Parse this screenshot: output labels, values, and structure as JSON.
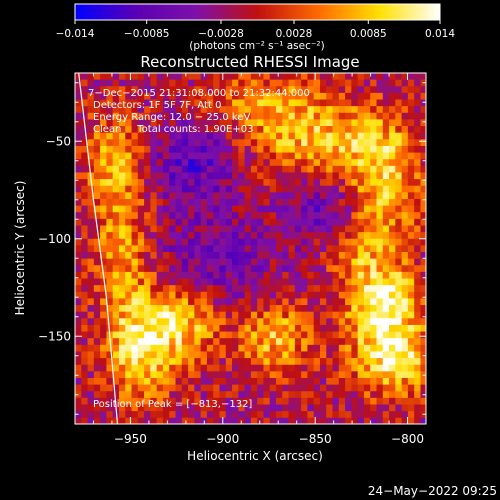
{
  "chart_data": {
    "type": "heatmap",
    "title": "Reconstructed RHESSI Image",
    "xlabel": "Heliocentric X (arcsec)",
    "ylabel": "Heliocentric Y (arcsec)",
    "xlim": [
      -980,
      -790
    ],
    "ylim": [
      -195,
      -15
    ],
    "x_ticks": [
      -950,
      -900,
      -850,
      -800
    ],
    "x_tick_labels": [
      "−950",
      "−900",
      "−850",
      "−800"
    ],
    "y_ticks": [
      -50,
      -100,
      -150
    ],
    "y_tick_labels": [
      "−50",
      "−100",
      "−150"
    ],
    "colorbar": {
      "min": -0.014,
      "max": 0.014,
      "ticks": [
        -0.014,
        -0.0085,
        -0.0028,
        0.0028,
        0.0085,
        0.014
      ],
      "tick_labels": [
        "−0.014",
        "−0.0085",
        "−0.0028",
        "0.0028",
        "0.0085",
        "0.014"
      ],
      "label": "(photons cm⁻² s⁻¹ asec⁻²)",
      "stops": [
        "#0000ff",
        "#5a00b4",
        "#7e10a8",
        "#c01010",
        "#ff6a00",
        "#ffe000",
        "#ffffff"
      ]
    },
    "annotations": [
      "7−Dec−2015 21:31:08.000 to 21:32:44.000",
      "Detectors: 1F 5F 7F, Att 0",
      "Energy Range: 12.0 − 25.0 keV",
      "Clean     Total counts: 1.90E+03",
      "Position of Peak = [−813,−132]"
    ],
    "sources": [
      {
        "x": -813,
        "y": -132,
        "sx": 14,
        "sy": 14,
        "amp": 0.014
      },
      {
        "x": -808,
        "y": -162,
        "sx": 16,
        "sy": 13,
        "amp": 0.012
      },
      {
        "x": -945,
        "y": -155,
        "sx": 13,
        "sy": 20,
        "amp": 0.012
      },
      {
        "x": -920,
        "y": -142,
        "sx": 15,
        "sy": 14,
        "amp": 0.0105
      },
      {
        "x": -872,
        "y": -150,
        "sx": 14,
        "sy": 13,
        "amp": 0.0095
      },
      {
        "x": -848,
        "y": -50,
        "sx": 28,
        "sy": 14,
        "amp": 0.0095
      },
      {
        "x": -812,
        "y": -72,
        "sx": 14,
        "sy": 22,
        "amp": 0.0095
      },
      {
        "x": -958,
        "y": -60,
        "sx": 12,
        "sy": 18,
        "amp": 0.0085
      },
      {
        "x": -955,
        "y": -105,
        "sx": 11,
        "sy": 20,
        "amp": 0.0075
      },
      {
        "x": -880,
        "y": -30,
        "sx": 22,
        "sy": 10,
        "amp": 0.007
      },
      {
        "x": -830,
        "y": -105,
        "sx": 12,
        "sy": 12,
        "amp": 0.006
      },
      {
        "x": -915,
        "y": -60,
        "sx": 18,
        "sy": 16,
        "amp": -0.007
      },
      {
        "x": -905,
        "y": -115,
        "sx": 22,
        "sy": 18,
        "amp": -0.006
      },
      {
        "x": -845,
        "y": -85,
        "sx": 14,
        "sy": 14,
        "amp": -0.006
      }
    ],
    "limb_points": [
      [
        -978,
        -15
      ],
      [
        -970,
        -80
      ],
      [
        -963,
        -130
      ],
      [
        -957,
        -195
      ]
    ],
    "noise_amplitude": 0.0042,
    "grid_resolution_arcsec": 3.4
  },
  "timestamp": "24−May−2022 09:25"
}
